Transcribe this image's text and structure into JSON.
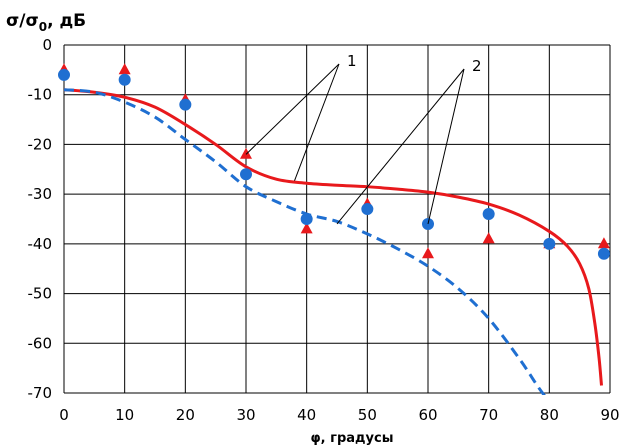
{
  "chart_data": {
    "type": "line",
    "ylabel_main": "σ/σ",
    "ylabel_sub": "0",
    "ylabel_tail": ", дБ",
    "xlabel": "φ, градусы",
    "xlim": [
      0,
      90
    ],
    "ylim": [
      -70,
      0
    ],
    "xticks": [
      0,
      10,
      20,
      30,
      40,
      50,
      60,
      70,
      80,
      90
    ],
    "yticks": [
      0,
      -10,
      -20,
      -30,
      -40,
      -50,
      -60,
      -70
    ],
    "grid": true,
    "series": [
      {
        "id": "red-curve",
        "style": "solid",
        "color": "#e8191c",
        "points": [
          [
            0,
            -9
          ],
          [
            5,
            -9.5
          ],
          [
            10,
            -10.5
          ],
          [
            15,
            -12.5
          ],
          [
            20,
            -16
          ],
          [
            25,
            -20
          ],
          [
            30,
            -24.5
          ],
          [
            35,
            -27
          ],
          [
            40,
            -27.8
          ],
          [
            45,
            -28.2
          ],
          [
            50,
            -28.5
          ],
          [
            55,
            -29
          ],
          [
            60,
            -29.6
          ],
          [
            65,
            -30.6
          ],
          [
            70,
            -32
          ],
          [
            75,
            -34.2
          ],
          [
            80,
            -37.5
          ],
          [
            83,
            -40.5
          ],
          [
            85,
            -44
          ],
          [
            86.5,
            -49
          ],
          [
            87.5,
            -56
          ],
          [
            88.2,
            -63
          ],
          [
            88.6,
            -68.5
          ]
        ]
      },
      {
        "id": "blue-dashed-curve",
        "style": "dashed",
        "color": "#1f6fd1",
        "points": [
          [
            0,
            -9
          ],
          [
            5,
            -9.5
          ],
          [
            10,
            -11.5
          ],
          [
            15,
            -14.5
          ],
          [
            20,
            -19
          ],
          [
            25,
            -23.5
          ],
          [
            30,
            -28.5
          ],
          [
            35,
            -31.5
          ],
          [
            40,
            -34
          ],
          [
            45,
            -35.5
          ],
          [
            50,
            -38
          ],
          [
            55,
            -41
          ],
          [
            60,
            -44.5
          ],
          [
            65,
            -49
          ],
          [
            70,
            -55
          ],
          [
            75,
            -63
          ],
          [
            78,
            -68.5
          ],
          [
            79.5,
            -71
          ]
        ]
      },
      {
        "id": "red-triangles",
        "marker": "triangle",
        "color": "#e8191c",
        "points": [
          [
            0,
            -5
          ],
          [
            10,
            -5
          ],
          [
            20,
            -11
          ],
          [
            30,
            -22
          ],
          [
            40,
            -37
          ],
          [
            50,
            -32
          ],
          [
            60,
            -42
          ],
          [
            70,
            -39
          ],
          [
            80,
            -40
          ],
          [
            89,
            -40
          ]
        ]
      },
      {
        "id": "blue-circles",
        "marker": "circle",
        "color": "#1f6fd1",
        "points": [
          [
            0,
            -6
          ],
          [
            10,
            -7
          ],
          [
            20,
            -12
          ],
          [
            30,
            -26
          ],
          [
            40,
            -35
          ],
          [
            50,
            -33
          ],
          [
            60,
            -36
          ],
          [
            70,
            -34
          ],
          [
            80,
            -40
          ],
          [
            89,
            -42
          ]
        ]
      }
    ],
    "annotations": [
      {
        "text": "1",
        "anchor": [
          339,
          64
        ],
        "targets": [
          [
            30,
            -22
          ],
          [
            38,
            -27.3
          ]
        ]
      },
      {
        "text": "2",
        "anchor": [
          464,
          69
        ],
        "targets": [
          [
            45,
            -36
          ],
          [
            60,
            -36
          ]
        ]
      }
    ]
  },
  "colors": {
    "grid": "#000000",
    "background": "#ffffff"
  }
}
